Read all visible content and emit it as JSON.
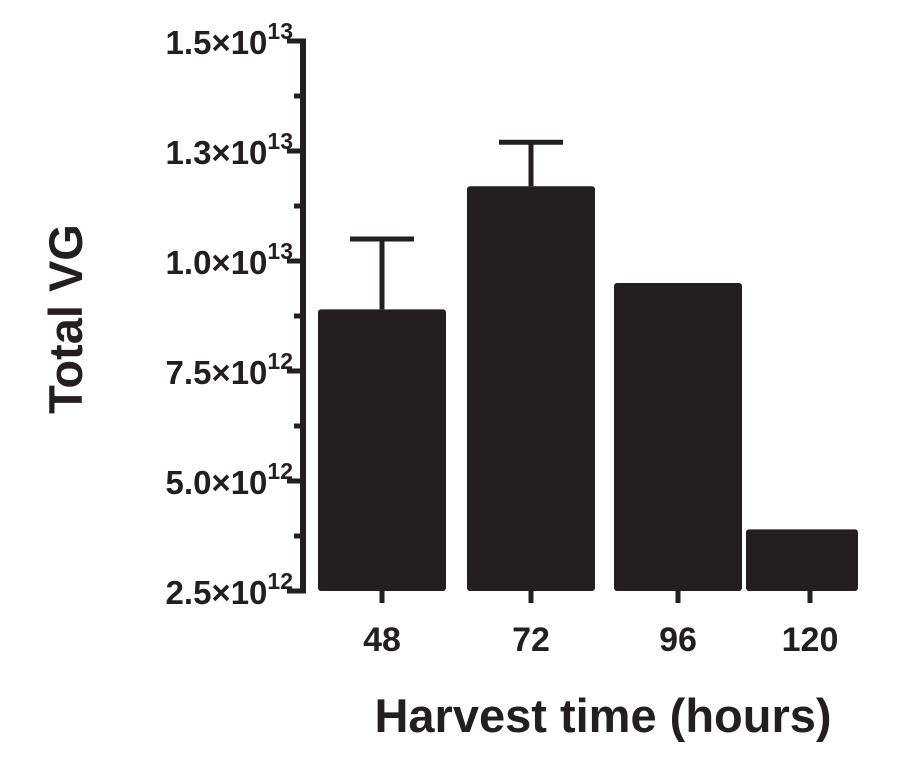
{
  "chart_data": {
    "type": "bar",
    "title": "",
    "xlabel": "Harvest time (hours)",
    "ylabel": "Total VG",
    "categories": [
      "48",
      "72",
      "96",
      "120"
    ],
    "values": [
      8900000000000,
      11700000000000,
      9500000000000,
      3900000000000
    ],
    "error_upper": [
      10500000000000,
      12700000000000,
      null,
      null
    ],
    "ylim": [
      2500000000000,
      15000000000000
    ],
    "y_ticks": [
      {
        "value": 2500000000000,
        "mantissa": "2.5×10",
        "exponent": "12"
      },
      {
        "value": 5000000000000,
        "mantissa": "5.0×10",
        "exponent": "12"
      },
      {
        "value": 7500000000000,
        "mantissa": "7.5×10",
        "exponent": "12"
      },
      {
        "value": 10000000000000,
        "mantissa": "1.0×10",
        "exponent": "13"
      },
      {
        "value": 12500000000000,
        "mantissa": "1.3×10",
        "exponent": "13"
      },
      {
        "value": 15000000000000,
        "mantissa": "1.5×10",
        "exponent": "13"
      }
    ],
    "y_minor_tick_step": 1250000000000,
    "bar_color": "#231f20",
    "axis_color": "#231f20",
    "grid": false,
    "legend": "none"
  }
}
